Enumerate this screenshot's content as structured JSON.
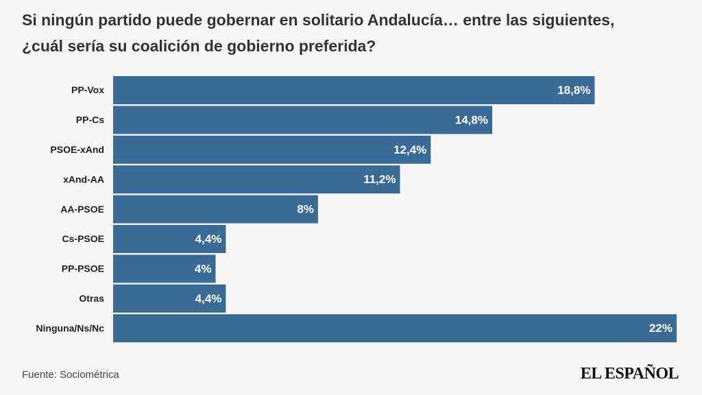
{
  "chart_data": {
    "type": "bar",
    "orientation": "horizontal",
    "title": "Si ningún partido puede gobernar en solitario Andalucía… entre las siguientes, ¿cuál sería su coalición de gobierno preferida?",
    "categories": [
      "PP-Vox",
      "PP-Cs",
      "PSOE-xAnd",
      "xAnd-AA",
      "AA-PSOE",
      "Cs-PSOE",
      "PP-PSOE",
      "Otras",
      "Ninguna/Ns/Nc"
    ],
    "values": [
      18.8,
      14.8,
      12.4,
      11.2,
      8,
      4.4,
      4,
      4.4,
      22
    ],
    "value_labels": [
      "18,8%",
      "14,8%",
      "12,4%",
      "11,2%",
      "8%",
      "4,4%",
      "4%",
      "4,4%",
      "22%"
    ],
    "color": "#3a6b94",
    "source": "Fuente: Sociométrica",
    "logo": "EL ESPAÑOL"
  }
}
